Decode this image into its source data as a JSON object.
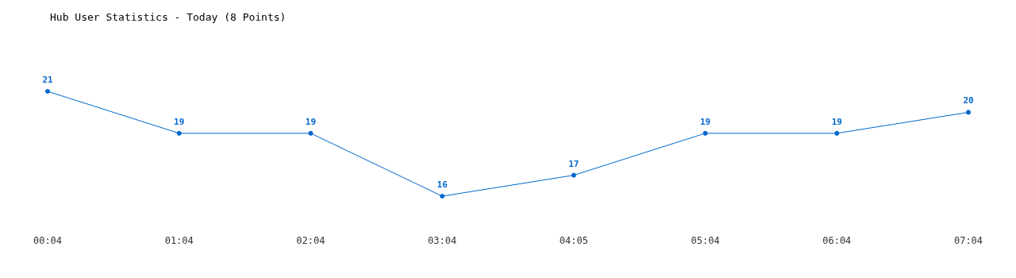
{
  "chart_data": {
    "type": "line",
    "title": "Hub User Statistics - Today (8 Points)",
    "categories": [
      "00:04",
      "01:04",
      "02:04",
      "03:04",
      "04:05",
      "05:04",
      "06:04",
      "07:04"
    ],
    "series": [
      {
        "color": "#0066cc",
        "values": [
          21,
          19,
          19,
          16,
          17,
          19,
          19,
          20
        ]
      }
    ],
    "data_labels": true,
    "marker": "circle",
    "line_style": "solid"
  }
}
